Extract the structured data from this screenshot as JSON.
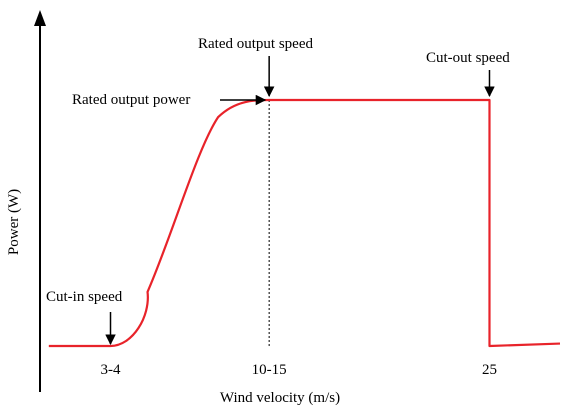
{
  "chart_data": {
    "type": "line",
    "xlabel": "Wind velocity (m/s)",
    "ylabel": "Power (W)",
    "x_ticks": [
      "3-4",
      "10-15",
      "25"
    ],
    "annotations": {
      "cut_in": "Cut-in speed",
      "rated_speed": "Rated output speed",
      "rated_power": "Rated output power",
      "cut_out": "Cut-out speed"
    },
    "series": [
      {
        "color": "#e8232a",
        "points": [
          {
            "x": 0,
            "y": 0
          },
          {
            "x": 3.5,
            "y": 0
          },
          {
            "x": 5,
            "y": 0.13
          },
          {
            "x": 7,
            "y": 0.5
          },
          {
            "x": 9,
            "y": 0.86
          },
          {
            "x": 10,
            "y": 0.96
          },
          {
            "x": 12.5,
            "y": 1
          },
          {
            "x": 25,
            "y": 1
          },
          {
            "x": 25,
            "y": 0
          },
          {
            "x": 29,
            "y": 0.01
          }
        ]
      }
    ],
    "rated_speed_x": 12.5,
    "rated_power_y": 1,
    "cut_in_x": 3.5,
    "cut_out_x": 25,
    "xlim": [
      -0.5,
      29
    ],
    "ylim": [
      0,
      1.25
    ],
    "tick_positions": [
      3.5,
      12.5,
      25
    ],
    "grid": false,
    "legend": false
  }
}
